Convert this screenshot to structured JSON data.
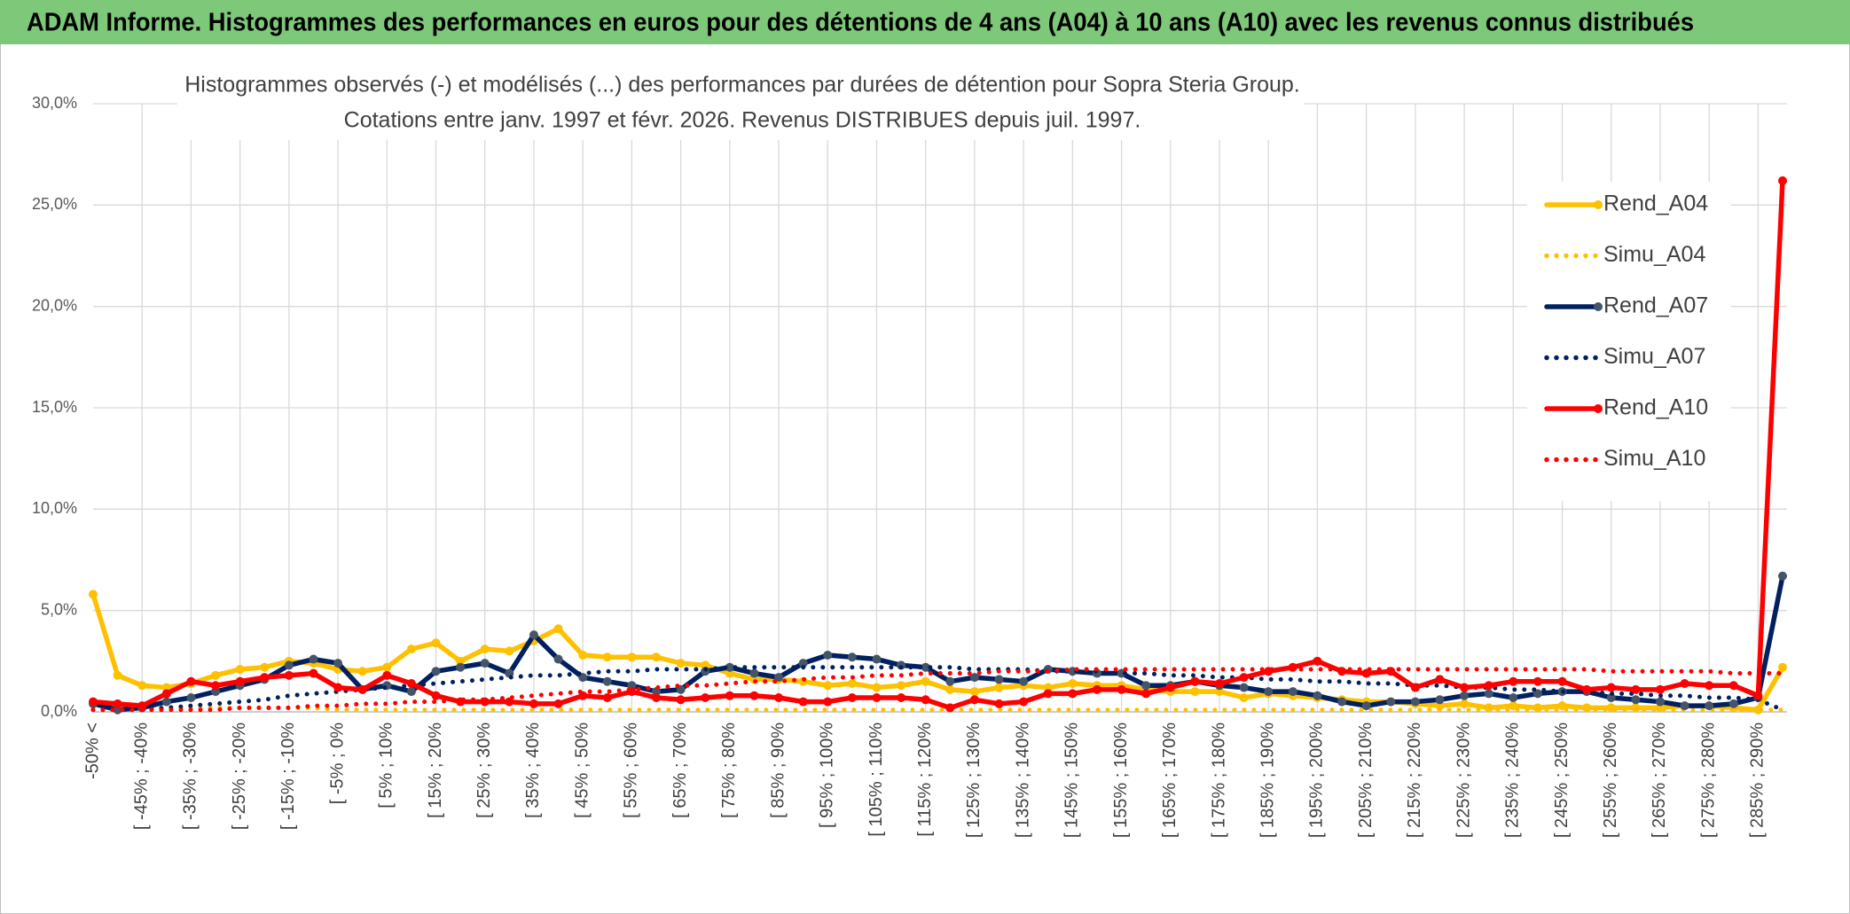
{
  "header": {
    "title": "ADAM Informe. Histogrammes des performances en euros pour des détentions de 4 ans (A04) à 10 ans (A10) avec les revenus connus distribués"
  },
  "chart_data": {
    "type": "line",
    "title": "Histogrammes observés (-) et modélisés (...) des performances par durées de détention pour Sopra Steria Group.",
    "subtitle": "Cotations entre janv. 1997 et févr. 2026. Revenus DISTRIBUES depuis juil. 1997.",
    "categories": [
      "-50% <",
      null,
      "[ -45% ; -40%",
      null,
      "[ -35% ; -30%",
      null,
      "[ -25% ; -20%",
      null,
      "[ -15% ; -10%",
      null,
      "[ -5% ; 0%",
      null,
      "[ 5% ; 10%",
      null,
      "[ 15% ; 20%",
      null,
      "[ 25% ; 30%",
      null,
      "[ 35% ; 40%",
      null,
      "[ 45% ; 50%",
      null,
      "[ 55% ; 60%",
      null,
      "[ 65% ; 70%",
      null,
      "[ 75% ; 80%",
      null,
      "[ 85% ; 90%",
      null,
      "[ 95% ; 100%",
      null,
      "[ 105% ; 110%",
      null,
      "[ 115% ; 120%",
      null,
      "[ 125% ; 130%",
      null,
      "[ 135% ; 140%",
      null,
      "[ 145% ; 150%",
      null,
      "[ 155% ; 160%",
      null,
      "[ 165% ; 170%",
      null,
      "[ 175% ; 180%",
      null,
      "[ 185% ; 190%",
      null,
      "[ 195% ; 200%",
      null,
      "[ 205% ; 210%",
      null,
      "[ 215% ; 220%",
      null,
      "[ 225% ; 230%",
      null,
      "[ 235% ; 240%",
      null,
      "[ 245% ; 250%",
      null,
      "[ 255% ; 260%",
      null,
      "[ 265% ; 270%",
      null,
      "[ 275% ; 280%",
      null,
      "[ 285% ; 290%",
      null
    ],
    "series": [
      {
        "name": "Rend_A04",
        "color": "#ffc000",
        "style": "solid",
        "values": [
          5.8,
          1.8,
          1.3,
          1.2,
          1.4,
          1.8,
          2.1,
          2.2,
          2.5,
          2.4,
          2.1,
          2.0,
          2.2,
          3.1,
          3.4,
          2.5,
          3.1,
          3.0,
          3.5,
          4.1,
          2.8,
          2.7,
          2.7,
          2.7,
          2.4,
          2.3,
          1.9,
          1.6,
          1.6,
          1.5,
          1.3,
          1.4,
          1.2,
          1.3,
          1.5,
          1.1,
          1.0,
          1.2,
          1.3,
          1.2,
          1.4,
          1.3,
          1.3,
          1.1,
          1.0,
          1.0,
          1.0,
          0.7,
          0.9,
          0.8,
          0.7,
          0.6,
          0.5,
          0.5,
          0.4,
          0.3,
          0.4,
          0.2,
          0.3,
          0.2,
          0.3,
          0.2,
          0.2,
          0.2,
          0.2,
          0.3,
          0.3,
          0.2,
          0.1,
          2.2
        ]
      },
      {
        "name": "Simu_A04",
        "color": "#ffc000",
        "style": "dotted",
        "values": [
          0.2,
          0.2,
          0.2,
          0.2,
          0.2,
          0.2,
          0.2,
          0.2,
          0.2,
          0.2,
          0.1,
          0.1,
          0.1,
          0.1,
          0.1,
          0.1,
          0.1,
          0.1,
          0.1,
          0.1,
          0.1,
          0.1,
          0.1,
          0.1,
          0.1,
          0.1,
          0.1,
          0.1,
          0.1,
          0.1,
          0.1,
          0.1,
          0.1,
          0.1,
          0.1,
          0.1,
          0.1,
          0.1,
          0.1,
          0.1,
          0.1,
          0.1,
          0.1,
          0.1,
          0.1,
          0.1,
          0.1,
          0.1,
          0.1,
          0.1,
          0.1,
          0.1,
          0.1,
          0.1,
          0.1,
          0.1,
          0.1,
          0.1,
          0.1,
          0.1,
          0.1,
          0.1,
          0.1,
          0.1,
          0.1,
          0.1,
          0.1,
          0.1,
          0.1,
          0.1
        ]
      },
      {
        "name": "Rend_A07",
        "color": "#002060",
        "style": "solid",
        "values": [
          0.4,
          0.1,
          0.2,
          0.5,
          0.7,
          1.0,
          1.3,
          1.6,
          2.3,
          2.6,
          2.4,
          1.1,
          1.3,
          1.0,
          2.0,
          2.2,
          2.4,
          1.9,
          3.8,
          2.6,
          1.7,
          1.5,
          1.3,
          1.0,
          1.1,
          2.0,
          2.2,
          1.9,
          1.7,
          2.4,
          2.8,
          2.7,
          2.6,
          2.3,
          2.2,
          1.5,
          1.7,
          1.6,
          1.5,
          2.1,
          2.0,
          1.9,
          1.9,
          1.3,
          1.3,
          1.5,
          1.3,
          1.2,
          1.0,
          1.0,
          0.8,
          0.5,
          0.3,
          0.5,
          0.5,
          0.6,
          0.8,
          0.9,
          0.7,
          0.9,
          1.0,
          1.0,
          0.7,
          0.6,
          0.5,
          0.3,
          0.3,
          0.4,
          0.7,
          6.7
        ]
      },
      {
        "name": "Simu_A07",
        "color": "#002060",
        "style": "dotted",
        "values": [
          0.1,
          0.1,
          0.1,
          0.2,
          0.3,
          0.4,
          0.5,
          0.6,
          0.8,
          0.9,
          1.0,
          1.1,
          1.2,
          1.3,
          1.4,
          1.5,
          1.6,
          1.7,
          1.8,
          1.8,
          1.9,
          2.0,
          2.0,
          2.1,
          2.1,
          2.1,
          2.2,
          2.2,
          2.2,
          2.2,
          2.2,
          2.2,
          2.2,
          2.2,
          2.2,
          2.2,
          2.1,
          2.1,
          2.1,
          2.0,
          2.0,
          2.0,
          1.9,
          1.9,
          1.8,
          1.8,
          1.7,
          1.7,
          1.6,
          1.6,
          1.5,
          1.5,
          1.4,
          1.4,
          1.3,
          1.3,
          1.2,
          1.2,
          1.1,
          1.1,
          1.0,
          1.0,
          0.9,
          0.9,
          0.8,
          0.8,
          0.7,
          0.7,
          0.6,
          0.1
        ]
      },
      {
        "name": "Rend_A10",
        "color": "#ff0000",
        "style": "solid",
        "values": [
          0.5,
          0.4,
          0.3,
          0.9,
          1.5,
          1.3,
          1.5,
          1.7,
          1.8,
          1.9,
          1.2,
          1.1,
          1.8,
          1.4,
          0.8,
          0.5,
          0.5,
          0.5,
          0.4,
          0.4,
          0.8,
          0.7,
          1.0,
          0.7,
          0.6,
          0.7,
          0.8,
          0.8,
          0.7,
          0.5,
          0.5,
          0.7,
          0.7,
          0.7,
          0.6,
          0.2,
          0.6,
          0.4,
          0.5,
          0.9,
          0.9,
          1.1,
          1.1,
          0.9,
          1.2,
          1.5,
          1.4,
          1.7,
          2.0,
          2.2,
          2.5,
          2.0,
          1.9,
          2.0,
          1.2,
          1.6,
          1.2,
          1.3,
          1.5,
          1.5,
          1.5,
          1.1,
          1.2,
          1.1,
          1.1,
          1.4,
          1.3,
          1.3,
          0.8,
          26.2
        ]
      },
      {
        "name": "Simu_A10",
        "color": "#ff0000",
        "style": "dotted",
        "values": [
          0.1,
          0.1,
          0.1,
          0.1,
          0.1,
          0.1,
          0.2,
          0.2,
          0.2,
          0.3,
          0.3,
          0.4,
          0.4,
          0.5,
          0.5,
          0.6,
          0.6,
          0.7,
          0.8,
          0.9,
          1.0,
          1.0,
          1.1,
          1.2,
          1.3,
          1.3,
          1.4,
          1.5,
          1.5,
          1.6,
          1.7,
          1.7,
          1.8,
          1.8,
          1.9,
          1.9,
          1.9,
          2.0,
          2.0,
          2.0,
          2.1,
          2.1,
          2.1,
          2.1,
          2.1,
          2.1,
          2.1,
          2.1,
          2.1,
          2.1,
          2.1,
          2.1,
          2.1,
          2.1,
          2.1,
          2.1,
          2.1,
          2.1,
          2.1,
          2.1,
          2.1,
          2.1,
          2.0,
          2.0,
          2.0,
          2.0,
          2.0,
          1.9,
          1.9,
          1.9
        ]
      }
    ],
    "ylim": [
      0,
      30
    ],
    "yticks": [
      {
        "value": 0,
        "label": "0,0%"
      },
      {
        "value": 5,
        "label": "5,0%"
      },
      {
        "value": 10,
        "label": "10,0%"
      },
      {
        "value": 15,
        "label": "15,0%"
      },
      {
        "value": 20,
        "label": "20,0%"
      },
      {
        "value": 25,
        "label": "25,0%"
      },
      {
        "value": 30,
        "label": "30,0%"
      }
    ],
    "grid": true,
    "legend": "upper right"
  }
}
